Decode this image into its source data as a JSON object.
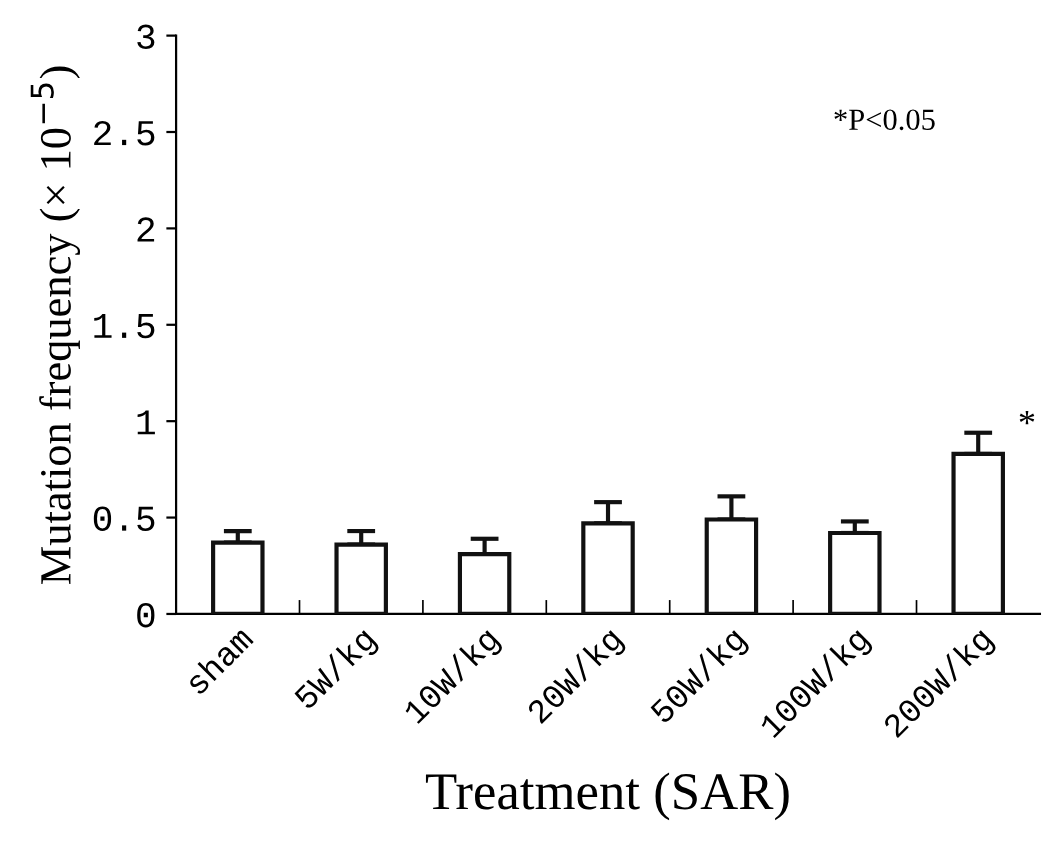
{
  "chart_data": {
    "type": "bar",
    "xlabel": "Treatment (SAR)",
    "ylabel": "Mutation frequency (× 10$^{−5}$)",
    "categories": [
      "sham",
      "5W/kg",
      "10W/kg",
      "20W/kg",
      "50W/kg",
      "100W/kg",
      "200W/kg"
    ],
    "values": [
      0.37,
      0.36,
      0.31,
      0.47,
      0.49,
      0.42,
      0.83
    ],
    "errors": [
      [
        0.37,
        0.43
      ],
      [
        0.36,
        0.43
      ],
      [
        0.31,
        0.39
      ],
      [
        0.47,
        0.58
      ],
      [
        0.49,
        0.61
      ],
      [
        0.42,
        0.48
      ],
      [
        0.83,
        0.94
      ]
    ],
    "color": "#ffffff",
    "ylim": [
      0,
      3
    ],
    "yticks": [
      0,
      {
        "value": 0.5,
        "label": "0.5"
      },
      1,
      {
        "value": 1.5,
        "label": "1.5"
      },
      2,
      {
        "value": 2.5,
        "label": "2.5"
      },
      3
    ],
    "grid": false,
    "annotations": [
      "*P<0.05",
      "*"
    ]
  }
}
